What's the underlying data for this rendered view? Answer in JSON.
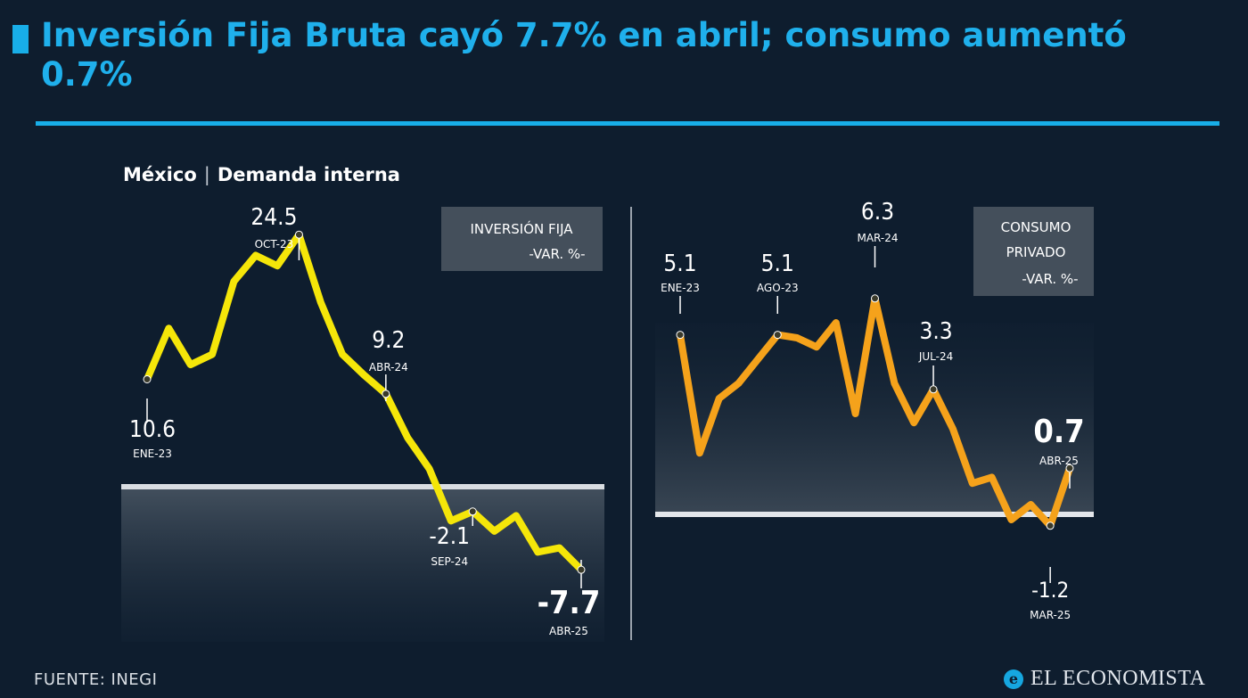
{
  "header": {
    "title": "Inversión Fija Bruta cayó 7.7% en abril; consumo aumentó 0.7%",
    "subtitle_country": "México",
    "subtitle_topic": "Demanda interna"
  },
  "footer": {
    "source": "FUENTE: INEGI",
    "brand": "EL ECONOMISTA"
  },
  "colors": {
    "background": "#0e1d2e",
    "accent": "#18aee8",
    "inversion": "#f5e609",
    "consumo": "#f5a21b"
  },
  "chart_data": [
    {
      "type": "line",
      "legend": [
        "INVERSIÓN FIJA",
        "-VAR. %-"
      ],
      "series": [
        {
          "values": [
            10.6,
            15.5,
            12.0,
            13.0,
            20.0,
            22.5,
            21.5,
            24.5,
            18.0,
            13.0,
            11.0,
            9.2,
            5.0,
            2.0,
            -3.0,
            -2.1,
            -4.0,
            -2.5,
            -6.0,
            -5.6,
            -7.7
          ]
        }
      ],
      "ylim": [
        -10,
        27
      ],
      "annotations": [
        {
          "index": 0,
          "value": "10.6",
          "date": "ENE-23"
        },
        {
          "index": 7,
          "value": "24.5",
          "date": "OCT-23"
        },
        {
          "index": 11,
          "value": "9.2",
          "date": "ABR-24"
        },
        {
          "index": 15,
          "value": "-2.1",
          "date": "SEP-24"
        },
        {
          "index": 20,
          "value": "-7.7",
          "date": "ABR-25"
        }
      ]
    },
    {
      "type": "line",
      "legend": [
        "CONSUMO",
        "PRIVADO",
        "-VAR. %-"
      ],
      "series": [
        {
          "values": [
            5.1,
            1.2,
            3.0,
            3.5,
            4.3,
            5.1,
            5.0,
            4.7,
            5.5,
            2.5,
            6.3,
            3.5,
            2.2,
            3.3,
            2.0,
            0.2,
            0.4,
            -1.0,
            -0.5,
            -1.2,
            0.7
          ]
        }
      ],
      "ylim": [
        -2.5,
        7.5
      ],
      "annotations": [
        {
          "index": 0,
          "value": "5.1",
          "date": "ENE-23"
        },
        {
          "index": 5,
          "value": "5.1",
          "date": "AGO-23"
        },
        {
          "index": 10,
          "value": "6.3",
          "date": "MAR-24"
        },
        {
          "index": 13,
          "value": "3.3",
          "date": "JUL-24"
        },
        {
          "index": 19,
          "value": "-1.2",
          "date": "MAR-25"
        },
        {
          "index": 20,
          "value": "0.7",
          "date": "ABR-25"
        }
      ]
    }
  ]
}
